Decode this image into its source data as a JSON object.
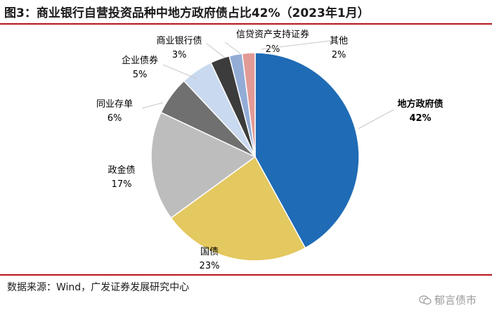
{
  "title": "图3：商业银行自营投资品种中地方政府债占比42%（2023年1月）",
  "source": "数据来源：Wind，广发证券发展研究中心",
  "watermark": {
    "text": "郁言债市",
    "icon": "wechat-icon"
  },
  "colors": {
    "accent": "#b5161c"
  },
  "chart_data": {
    "type": "pie",
    "title": "商业银行自营投资品种中地方政府债占比42%（2023年1月）",
    "slices": [
      {
        "label": "地方政府债",
        "value": 42,
        "value_label": "42%",
        "color": "#1f6bb5",
        "bold": true
      },
      {
        "label": "国债",
        "value": 23,
        "value_label": "23%",
        "color": "#e4c860",
        "bold": false
      },
      {
        "label": "政金债",
        "value": 17,
        "value_label": "17%",
        "color": "#bdbdbd",
        "bold": false
      },
      {
        "label": "同业存单",
        "value": 6,
        "value_label": "6%",
        "color": "#707070",
        "bold": false
      },
      {
        "label": "企业债券",
        "value": 5,
        "value_label": "5%",
        "color": "#c9d9ef",
        "bold": false
      },
      {
        "label": "商业银行债",
        "value": 3,
        "value_label": "3%",
        "color": "#3c3c3c",
        "bold": false
      },
      {
        "label": "信贷资产支持证券",
        "value": 2,
        "value_label": "2%",
        "color": "#93acd6",
        "bold": false
      },
      {
        "label": "其他",
        "value": 2,
        "value_label": "2%",
        "color": "#e29a96",
        "bold": false
      }
    ],
    "start": "12 o'clock",
    "direction": "clockwise",
    "legend": "none"
  }
}
